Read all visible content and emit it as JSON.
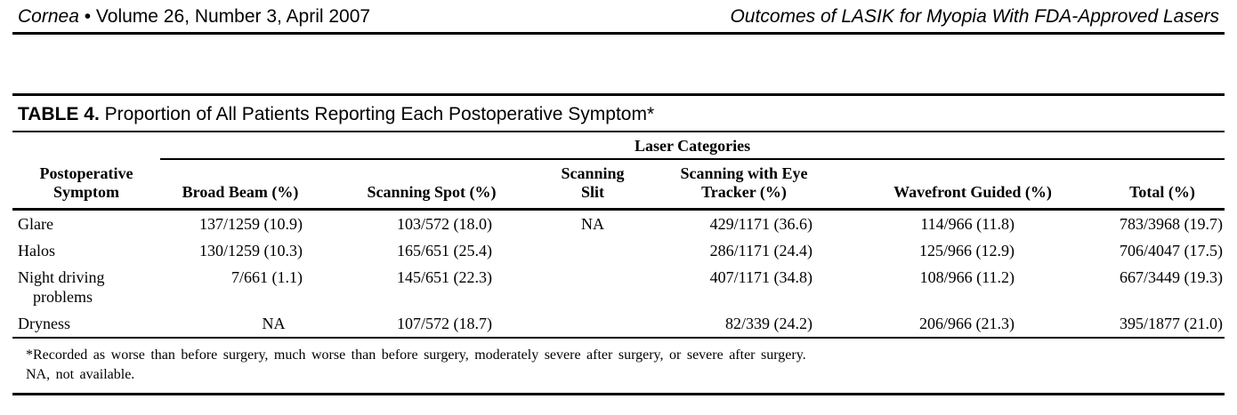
{
  "running_head": {
    "journal_italic": "Cornea",
    "journal_rest": " • Volume 26, Number 3, April 2007",
    "article_title": "Outcomes of LASIK for Myopia With FDA-Approved Lasers"
  },
  "table": {
    "label": "TABLE 4.",
    "title": " Proportion of All Patients Reporting Each Postoperative Symptom*",
    "group_header": "Laser Categories",
    "columns": [
      "Postoperative Symptom",
      "Broad Beam (%)",
      "Scanning Spot (%)",
      "Scanning Slit",
      "Scanning with Eye Tracker (%)",
      "Wavefront Guided (%)",
      "Total (%)"
    ],
    "rows": [
      [
        "Glare",
        "137/1259 (10.9)",
        "103/572 (18.0)",
        "NA",
        "429/1171 (36.6)",
        "114/966 (11.8)",
        "783/3968 (19.7)"
      ],
      [
        "Halos",
        "130/1259 (10.3)",
        "165/651 (25.4)",
        "",
        "286/1171 (24.4)",
        "125/966 (12.9)",
        "706/4047 (17.5)"
      ],
      [
        "Night driving problems",
        "7/661 (1.1)",
        "145/651 (22.3)",
        "",
        "407/1171 (34.8)",
        "108/966 (11.2)",
        "667/3449 (19.3)"
      ],
      [
        "Dryness",
        "NA",
        "107/572 (18.7)",
        "",
        "82/339 (24.2)",
        "206/966 (21.3)",
        "395/1877 (21.0)"
      ]
    ],
    "footnotes": [
      "*Recorded as worse than before surgery, much worse than before surgery, moderately severe after surgery, or severe after surgery.",
      "NA, not available."
    ]
  },
  "colors": {
    "text": "#000000",
    "background": "#ffffff"
  }
}
